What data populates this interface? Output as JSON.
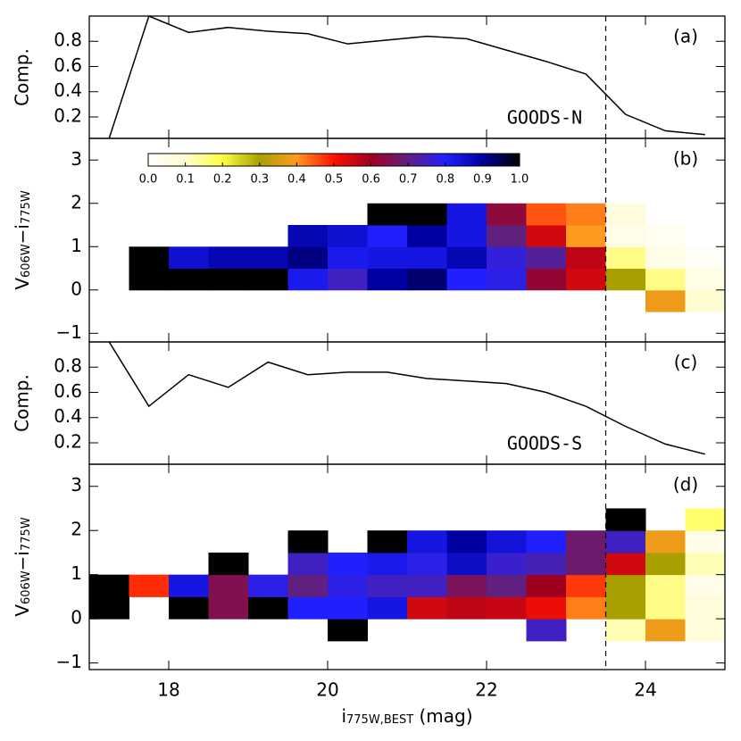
{
  "chart_data": [
    {
      "type": "line",
      "label": "(a)",
      "annotation": "GOODS-N",
      "ylabel": "Comp.",
      "x": [
        17.25,
        17.75,
        18.25,
        18.75,
        19.25,
        19.75,
        20.25,
        20.75,
        21.25,
        21.75,
        22.25,
        22.75,
        23.25,
        23.75,
        24.25,
        24.75
      ],
      "values": [
        0.03,
        1.0,
        0.87,
        0.91,
        0.88,
        0.86,
        0.78,
        0.81,
        0.84,
        0.82,
        0.73,
        0.64,
        0.54,
        0.22,
        0.09,
        0.06
      ],
      "color": "#000000",
      "xlim": [
        17,
        25
      ],
      "ylim": [
        0.03,
        1.0
      ],
      "xticks": [
        18,
        20,
        22,
        24
      ],
      "yticks": [
        0.2,
        0.4,
        0.6,
        0.8
      ],
      "vline": 23.5
    },
    {
      "type": "heatmap",
      "label": "(b)",
      "ylabel": [
        "V",
        "606W",
        "−i",
        "775W"
      ],
      "x_bins": [
        17,
        17.5,
        18,
        18.5,
        19,
        19.5,
        20,
        20.5,
        21,
        21.5,
        22,
        22.5,
        23,
        23.5,
        24,
        24.5,
        25
      ],
      "y_bins": [
        -0.5,
        0,
        0.5,
        1,
        1.5,
        2
      ],
      "values": [
        [
          null,
          null,
          null,
          null,
          null,
          null,
          null,
          null,
          null,
          null,
          null,
          null,
          null,
          null,
          0.38,
          0.1
        ],
        [
          null,
          1,
          1,
          1,
          1,
          0.82,
          0.75,
          0.9,
          0.93,
          0.8,
          0.78,
          0.62,
          0.55,
          0.3,
          0.15,
          0.06
        ],
        [
          null,
          1,
          0.85,
          0.88,
          0.88,
          0.92,
          0.82,
          0.83,
          0.83,
          0.88,
          0.77,
          0.72,
          0.57,
          0.15,
          0.05,
          0.02
        ],
        [
          null,
          null,
          null,
          null,
          null,
          0.88,
          0.85,
          0.8,
          0.9,
          0.83,
          0.7,
          0.55,
          0.4,
          0.05,
          0.03,
          null
        ],
        [
          null,
          null,
          null,
          null,
          null,
          null,
          null,
          1,
          1,
          0.83,
          0.63,
          0.45,
          0.42,
          0.07,
          null,
          null
        ]
      ],
      "colors": [
        "#ffffff",
        "#fffbd0",
        "#ffff40",
        "#a8a000",
        "#ff9a20",
        "#ff1000",
        "#a00020",
        "#602080",
        "#2020ff",
        "#0000a0",
        "#000000"
      ],
      "clim": [
        0,
        1
      ],
      "colorbar_ticks": [
        {
          "value": 0,
          "label": "0.0"
        },
        0.1,
        0.2,
        0.3,
        0.4,
        0.5,
        0.6,
        0.7,
        0.8,
        0.9,
        {
          "value": 1,
          "label": "1.0"
        }
      ],
      "xlim": [
        17,
        25
      ],
      "ylim": [
        -1.2,
        3.5
      ],
      "xticks": [
        18,
        20,
        22,
        24
      ],
      "yticks": [
        {
          "value": -1,
          "label": "−1"
        },
        0,
        1,
        2,
        3
      ],
      "vline": 23.5
    },
    {
      "type": "line",
      "label": "(c)",
      "annotation": "GOODS-S",
      "ylabel": "Comp.",
      "x": [
        17.25,
        17.75,
        18.25,
        18.75,
        19.25,
        19.75,
        20.25,
        20.75,
        21.25,
        21.75,
        22.25,
        22.75,
        23.25,
        23.75,
        24.25,
        24.75
      ],
      "values": [
        1.0,
        0.49,
        0.74,
        0.64,
        0.84,
        0.74,
        0.76,
        0.76,
        0.71,
        0.69,
        0.67,
        0.6,
        0.49,
        0.33,
        0.19,
        0.11
      ],
      "color": "#000000",
      "xlim": [
        17,
        25
      ],
      "ylim": [
        0.03,
        1.0
      ],
      "xticks": [
        18,
        20,
        22,
        24
      ],
      "yticks": [
        0.2,
        0.4,
        0.6,
        0.8
      ],
      "vline": 23.5
    },
    {
      "type": "heatmap",
      "label": "(d)",
      "ylabel": [
        "V",
        "606W",
        "−i",
        "775W"
      ],
      "xlabel": [
        "i",
        "775W,BEST",
        " (mag)"
      ],
      "x_bins": [
        17,
        17.5,
        18,
        18.5,
        19,
        19.5,
        20,
        20.5,
        21,
        21.5,
        22,
        22.5,
        23,
        23.5,
        24,
        24.5,
        25
      ],
      "y_bins": [
        -0.5,
        0,
        0.5,
        1,
        1.5,
        2,
        2.5
      ],
      "values": [
        [
          null,
          null,
          null,
          null,
          null,
          null,
          1,
          null,
          null,
          null,
          null,
          0.75,
          null,
          0.12,
          0.38,
          0.08
        ],
        [
          1,
          null,
          1,
          0.65,
          1,
          0.8,
          0.8,
          0.83,
          0.55,
          0.57,
          0.56,
          0.52,
          0.42,
          0.3,
          0.15,
          0.08
        ],
        [
          1,
          0.48,
          0.83,
          0.65,
          0.78,
          0.7,
          0.78,
          0.75,
          0.75,
          0.66,
          0.7,
          0.6,
          0.47,
          0.3,
          0.15,
          0.05
        ],
        [
          null,
          null,
          null,
          1,
          null,
          0.75,
          0.8,
          0.82,
          0.78,
          0.86,
          0.76,
          0.74,
          0.68,
          0.55,
          0.3,
          0.12
        ],
        [
          null,
          null,
          null,
          null,
          null,
          1,
          null,
          1,
          0.83,
          0.9,
          0.84,
          0.8,
          0.68,
          0.75,
          0.38,
          0.05
        ],
        [
          null,
          null,
          null,
          null,
          null,
          null,
          null,
          null,
          null,
          null,
          null,
          null,
          null,
          1,
          null,
          0.17
        ]
      ],
      "colors": [
        "#ffffff",
        "#fffbd0",
        "#ffff40",
        "#a8a000",
        "#ff9a20",
        "#ff1000",
        "#a00020",
        "#602080",
        "#2020ff",
        "#0000a0",
        "#000000"
      ],
      "clim": [
        0,
        1
      ],
      "xlim": [
        17,
        25
      ],
      "ylim": [
        -1.15,
        3.5
      ],
      "xticks": [
        18,
        20,
        22,
        24
      ],
      "yticks": [
        {
          "value": -1,
          "label": "−1"
        },
        0,
        1,
        2,
        3
      ],
      "vline": 23.5
    }
  ]
}
